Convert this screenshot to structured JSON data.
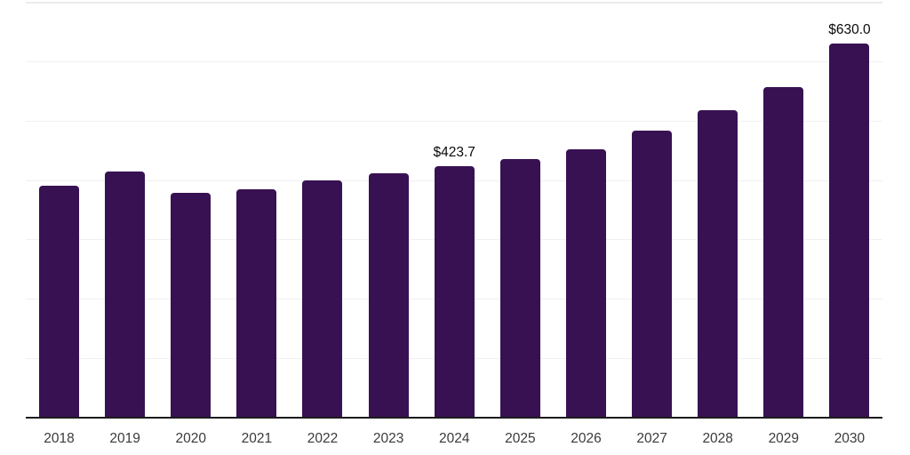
{
  "chart_data": {
    "type": "bar",
    "title": "",
    "xlabel": "",
    "ylabel": "",
    "categories": [
      "2018",
      "2019",
      "2020",
      "2021",
      "2022",
      "2023",
      "2024",
      "2025",
      "2026",
      "2027",
      "2028",
      "2029",
      "2030"
    ],
    "values": [
      390,
      415,
      378,
      385,
      399,
      412,
      423.7,
      436,
      452,
      483,
      517,
      557,
      630
    ],
    "data_labels": [
      {
        "category": "2024",
        "text": "$423.7"
      },
      {
        "category": "2030",
        "text": "$630.0"
      }
    ],
    "ylim": [
      0,
      700
    ],
    "gridline_step": 100,
    "grid": "horizontal gridlines only, no y-axis tick labels",
    "legend_position": "none",
    "bar_color": "#381153",
    "axis_color": "#1b1b1b",
    "gridline_color": "#f0f0f2",
    "tick_label_color": "#3a3a3a",
    "value_label_color": "#0a0a0a"
  }
}
